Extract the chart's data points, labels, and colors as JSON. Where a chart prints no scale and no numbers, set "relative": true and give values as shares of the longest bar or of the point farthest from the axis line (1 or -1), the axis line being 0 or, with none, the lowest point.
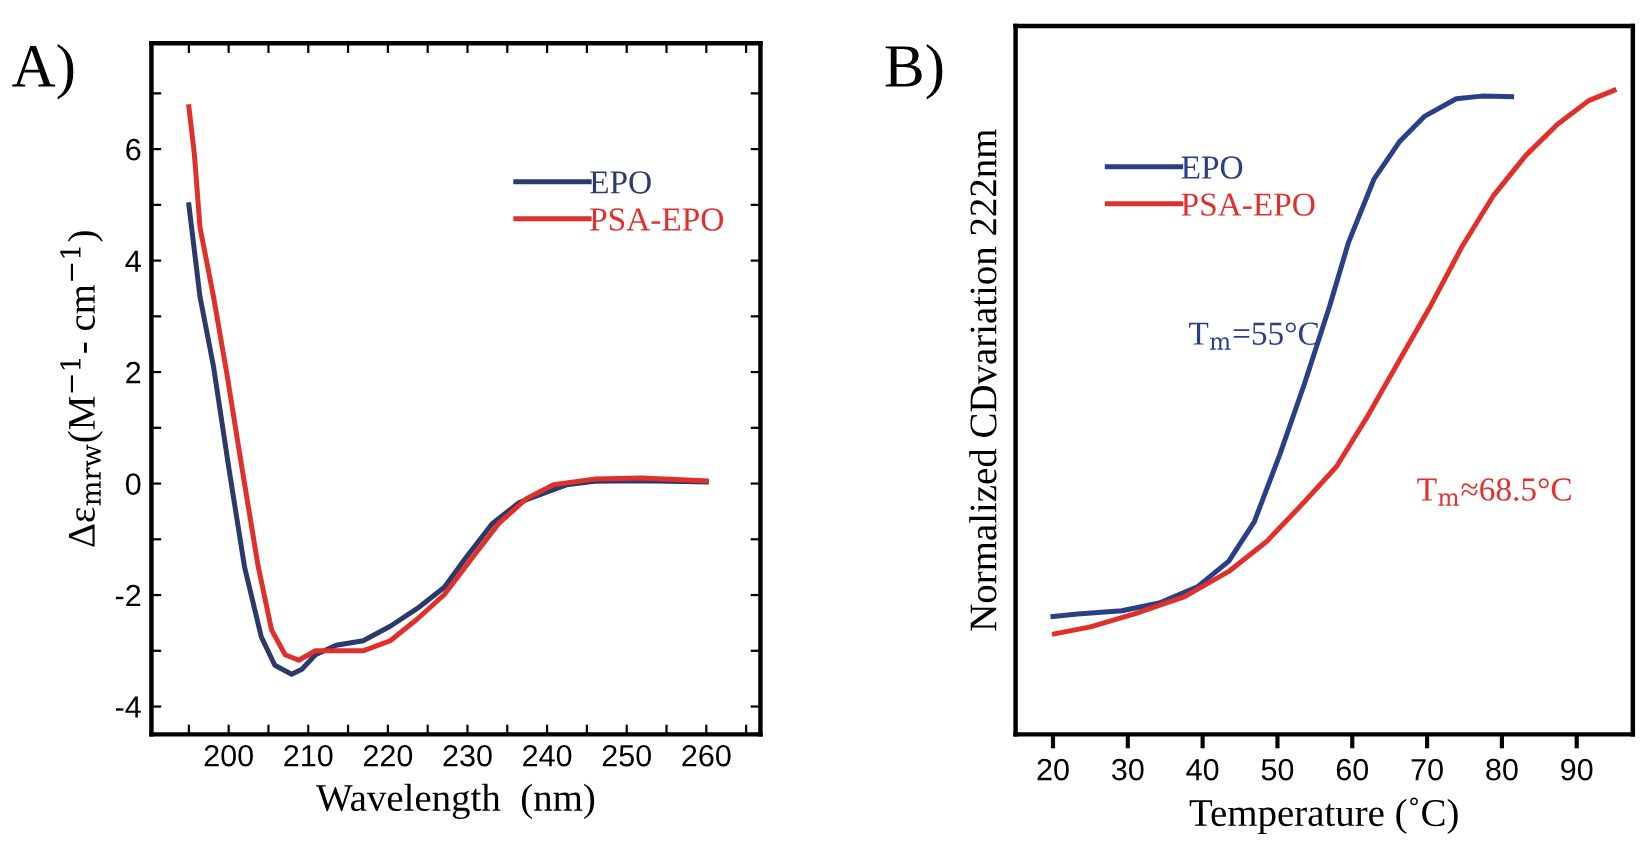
{
  "chart_data": [
    {
      "type": "line",
      "title": "A)",
      "xlabel": "Wavelength  (nm)",
      "ylabel": "Δε$_{mrw}$(M$^{−1}$- cm$^{−1}$)",
      "xlim": [
        190.3,
        266.8
      ],
      "ylim": [
        -4.5,
        7.9
      ],
      "xticks": [
        {
          "value": 195,
          "label": null
        },
        200,
        {
          "value": 205,
          "label": null
        },
        210,
        {
          "value": 215,
          "label": null
        },
        220,
        {
          "value": 225,
          "label": null
        },
        230,
        {
          "value": 235,
          "label": null
        },
        240,
        {
          "value": 245,
          "label": null
        },
        250,
        {
          "value": 255,
          "label": null
        },
        260,
        {
          "value": 265,
          "label": null
        }
      ],
      "yticks": [
        -4,
        {
          "value": -3,
          "label": null
        },
        -2,
        {
          "value": -1,
          "label": null
        },
        0,
        {
          "value": 1,
          "label": null
        },
        2,
        {
          "value": 3,
          "label": null
        },
        4,
        {
          "value": 5,
          "label": null
        },
        6,
        {
          "value": 7,
          "label": null
        }
      ],
      "legend": "top right",
      "grid": false,
      "series": [
        {
          "name": "EPO",
          "color": "#2b3a6b",
          "x": [
            195,
            196.4,
            198.1,
            200,
            202,
            204.1,
            205.8,
            207.9,
            209.2,
            210.9,
            213.5,
            216.9,
            220.3,
            223.7,
            227.1,
            229.7,
            233.1,
            236.5,
            239.1,
            242.5,
            245.9,
            251.9,
            260
          ],
          "values": [
            5.0,
            3.35,
            2.1,
            0.3,
            -1.5,
            -2.75,
            -3.26,
            -3.42,
            -3.33,
            -3.07,
            -2.9,
            -2.82,
            -2.56,
            -2.24,
            -1.86,
            -1.35,
            -0.72,
            -0.34,
            -0.2,
            -0.02,
            0.04,
            0.05,
            0.03
          ]
        },
        {
          "name": "PSA-EPO",
          "color": "#e0302c",
          "x": [
            195,
            195.7,
            196.4,
            198.1,
            199.8,
            201.5,
            203.7,
            205.4,
            207.1,
            208.8,
            210.9,
            213.5,
            216.9,
            220.3,
            223.7,
            227.1,
            230.5,
            233.9,
            237.4,
            240.8,
            245.9,
            251.9,
            260
          ],
          "values": [
            6.76,
            5.9,
            4.6,
            3.35,
            1.95,
            0.43,
            -1.48,
            -2.63,
            -3.07,
            -3.17,
            -3.0,
            -3.0,
            -3.0,
            -2.82,
            -2.43,
            -1.99,
            -1.35,
            -0.72,
            -0.27,
            -0.02,
            0.08,
            0.1,
            0.05
          ]
        }
      ]
    },
    {
      "type": "line",
      "title": "B)",
      "xlabel": "Temperature (˚C)",
      "ylabel": "Normalized CDvariation 222nm",
      "relative": true,
      "xlim": [
        15,
        97.5
      ],
      "xticks": [
        20,
        30,
        40,
        50,
        60,
        70,
        80,
        90
      ],
      "tick_labels": "x",
      "legend": "top left",
      "grid": false,
      "annotations": [
        "T$_{m}$=55°C",
        "T$_{m}$≈68.5°C"
      ],
      "series": [
        {
          "name": "EPO",
          "color": "#2b3f87",
          "x": [
            20,
            23.3,
            29.2,
            34.2,
            39.3,
            43.5,
            46.9,
            50.3,
            53.6,
            57.0,
            59.5,
            62.9,
            66.3,
            69.7,
            73.9,
            77.3,
            81.3
          ],
          "values": [
            0.183,
            0.187,
            0.192,
            0.204,
            0.229,
            0.269,
            0.33,
            0.434,
            0.544,
            0.666,
            0.764,
            0.862,
            0.92,
            0.96,
            0.987,
            0.991,
            0.99
          ]
        },
        {
          "name": "PSA-EPO",
          "color": "#e0302c",
          "x": [
            20.2,
            25.0,
            30.9,
            37.6,
            43.5,
            48.6,
            53.6,
            57.9,
            62.1,
            66.3,
            70.5,
            74.7,
            78.9,
            83.2,
            87.4,
            91.6,
            95.0
          ],
          "values": [
            0.156,
            0.167,
            0.187,
            0.214,
            0.253,
            0.3,
            0.361,
            0.416,
            0.495,
            0.581,
            0.666,
            0.758,
            0.837,
            0.899,
            0.947,
            0.984,
            1.0
          ]
        }
      ]
    }
  ]
}
